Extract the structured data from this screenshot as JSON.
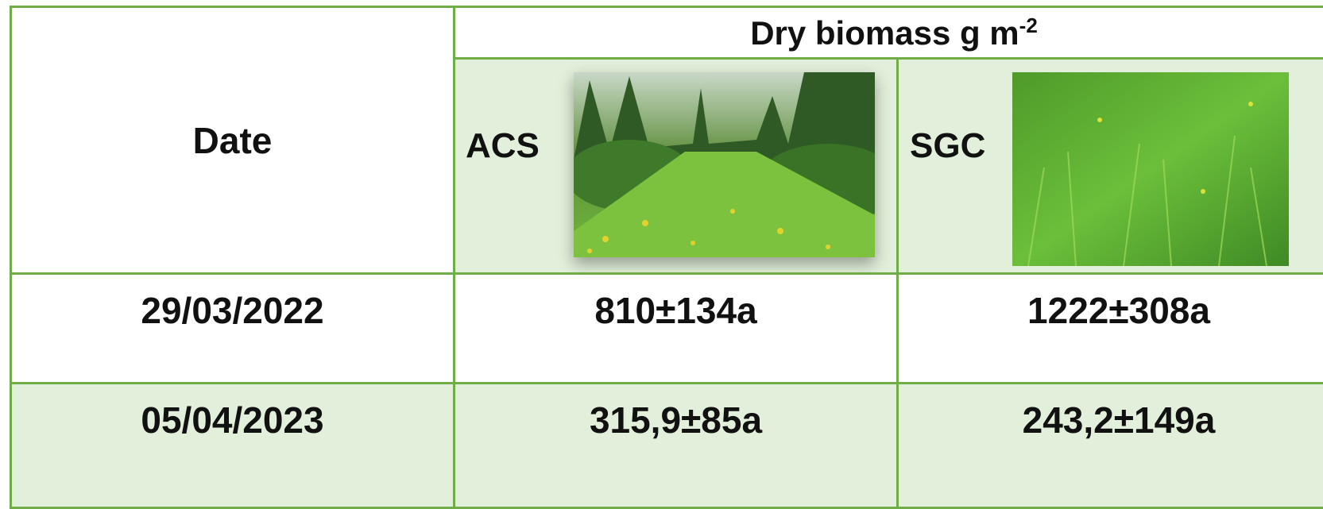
{
  "header": {
    "date_label": "Date",
    "title": "Dry biomass g m",
    "title_superscript": "-2",
    "columns": [
      "ACS",
      "SGC"
    ]
  },
  "table": {
    "rows": [
      [
        "29/03/2022",
        "810±134a",
        "1222±308a"
      ],
      [
        "05/04/2023",
        "315,9±85a",
        "243,2±149a"
      ]
    ]
  }
}
